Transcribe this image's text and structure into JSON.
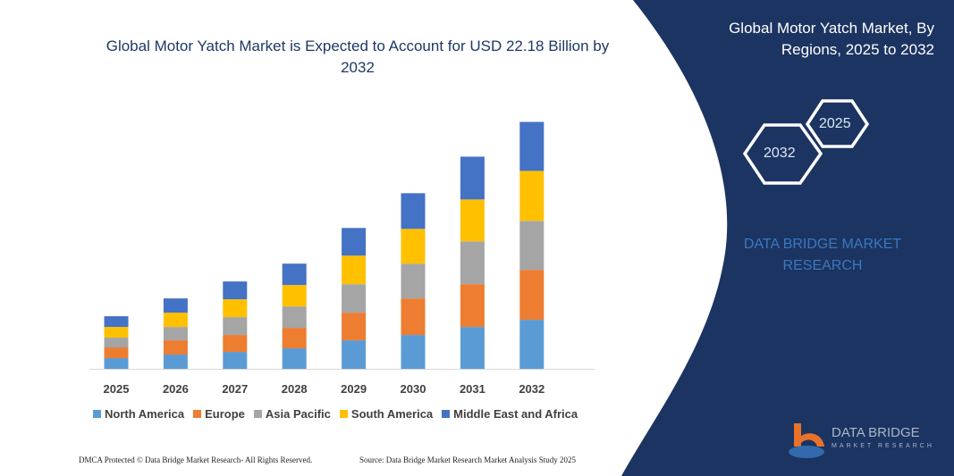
{
  "title": "Global Motor Yatch Market is Expected to Account for USD 22.18 Billion by 2032",
  "right_panel": {
    "title": "Global Motor Yatch Market, By Regions, 2025 to 2032",
    "hex_years": [
      "2025",
      "2032"
    ],
    "brand_text": "DATA BRIDGE MARKET RESEARCH",
    "logo_text": "DATA BRIDGE",
    "logo_sub": "MARKET RESEARCH",
    "panel_color": "#1c3461"
  },
  "footer": {
    "left": "DMCA Protected © Data Bridge Market Research- All Rights Reserved.",
    "right": "Source: Data Bridge Market Research Market Analysis Study 2025"
  },
  "chart_data": {
    "type": "bar",
    "stacked": true,
    "categories": [
      "2025",
      "2026",
      "2027",
      "2028",
      "2029",
      "2030",
      "2031",
      "2032"
    ],
    "series": [
      {
        "name": "North America",
        "color": "#5b9bd5",
        "values": [
          0.96,
          1.28,
          1.52,
          1.84,
          2.56,
          3.04,
          3.76,
          4.4
        ]
      },
      {
        "name": "Europe",
        "color": "#ed7d31",
        "values": [
          0.96,
          1.28,
          1.52,
          1.84,
          2.48,
          3.28,
          3.84,
          4.48
        ]
      },
      {
        "name": "Asia Pacific",
        "color": "#a5a5a5",
        "values": [
          0.88,
          1.2,
          1.6,
          1.92,
          2.56,
          3.12,
          3.84,
          4.4
        ]
      },
      {
        "name": "South America",
        "color": "#ffc000",
        "values": [
          0.96,
          1.28,
          1.6,
          1.92,
          2.56,
          3.12,
          3.76,
          4.48
        ]
      },
      {
        "name": "Middle East and Africa",
        "color": "#4472c4",
        "values": [
          0.96,
          1.28,
          1.6,
          1.92,
          2.48,
          3.2,
          3.84,
          4.4
        ]
      }
    ],
    "ylim": [
      0,
      22.2
    ],
    "grid": false,
    "legend_position": "bottom"
  }
}
